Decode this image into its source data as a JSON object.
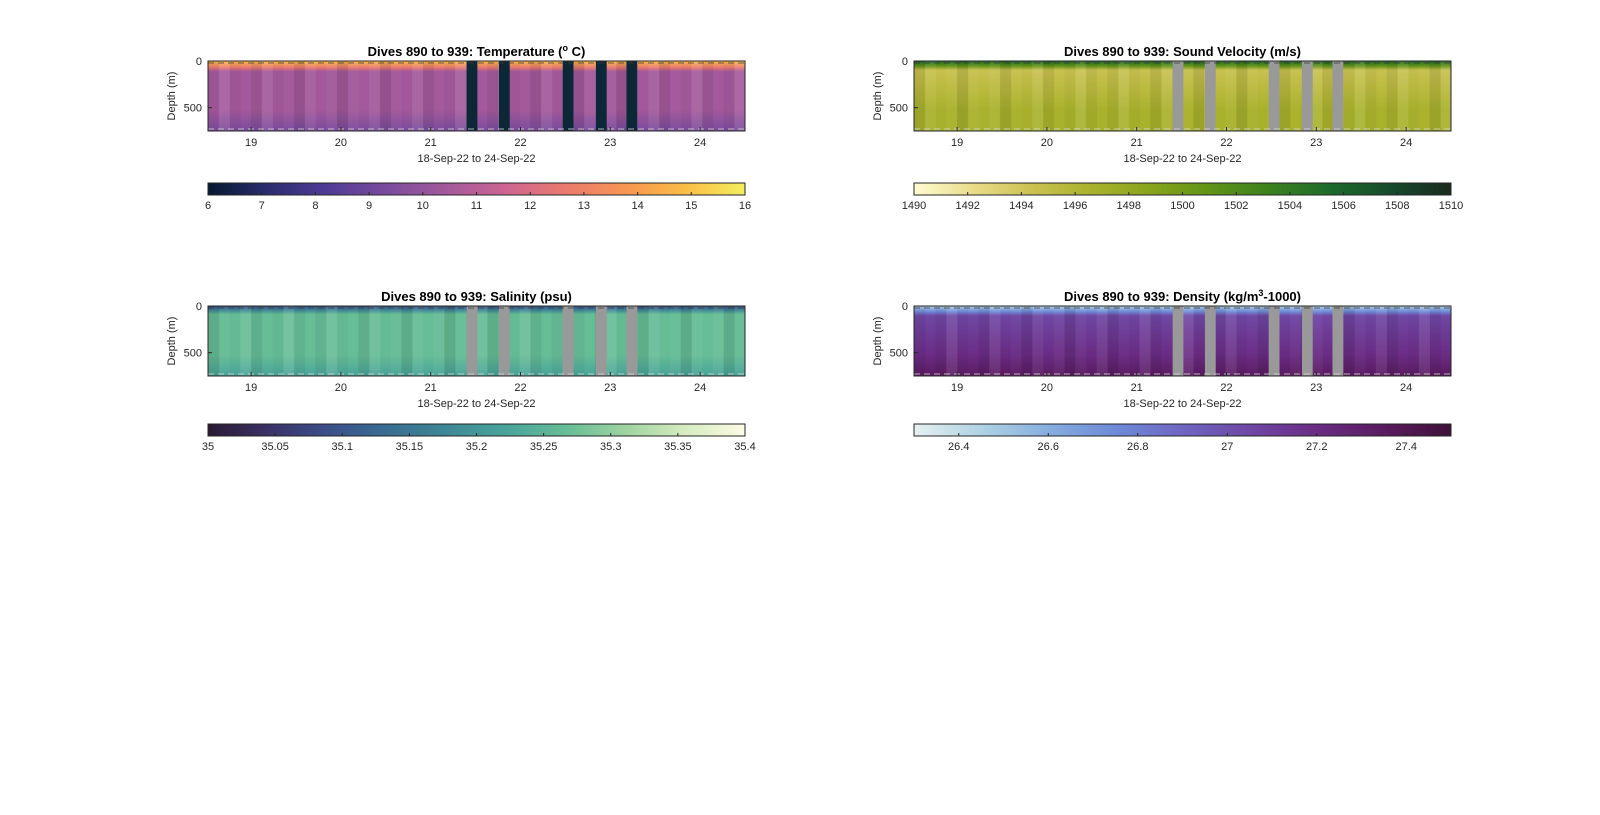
{
  "figure": {
    "background": "#ffffff"
  },
  "chart_data": [
    {
      "type": "heatmap",
      "title_prefix": "Dives 890 to 939: ",
      "title_main": "Temperature (",
      "title_sup": "o",
      "title_end": " C)",
      "xlabel": "18-Sep-22 to 24-Sep-22",
      "ylabel": "Depth (m)",
      "x_ticks": [
        "19",
        "20",
        "21",
        "22",
        "23",
        "24"
      ],
      "x_tick_values": [
        19,
        20,
        21,
        22,
        23,
        24
      ],
      "xlim": [
        18.52,
        24.5
      ],
      "y_ticks": [
        "0",
        "500"
      ],
      "y_tick_values": [
        0,
        500
      ],
      "ylim": [
        0,
        750
      ],
      "gaps": [
        [
          21.4,
          21.52
        ],
        [
          21.76,
          21.88
        ],
        [
          22.47,
          22.59
        ],
        [
          22.84,
          22.96
        ],
        [
          23.18,
          23.3
        ]
      ],
      "gap_color": "#0c2837",
      "colorbar": {
        "ticks": [
          "6",
          "7",
          "8",
          "9",
          "10",
          "11",
          "12",
          "13",
          "14",
          "15",
          "16"
        ],
        "tick_values": [
          6,
          7,
          8,
          9,
          10,
          11,
          12,
          13,
          14,
          15,
          16
        ],
        "range": [
          6,
          16
        ],
        "colors": [
          "#05192e",
          "#2b2d6e",
          "#4f3b97",
          "#7a4c9d",
          "#a3599b",
          "#cd6591",
          "#ea7a6e",
          "#f79652",
          "#fbbd46",
          "#f3ee5e"
        ]
      }
    },
    {
      "type": "heatmap",
      "title_prefix": "Dives 890 to 939: ",
      "title_main": "Sound Velocity (m/s)",
      "title_sup": "",
      "title_end": "",
      "xlabel": "18-Sep-22 to 24-Sep-22",
      "ylabel": "Depth (m)",
      "x_ticks": [
        "19",
        "20",
        "21",
        "22",
        "23",
        "24"
      ],
      "x_tick_values": [
        19,
        20,
        21,
        22,
        23,
        24
      ],
      "xlim": [
        18.52,
        24.5
      ],
      "y_ticks": [
        "0",
        "500"
      ],
      "y_tick_values": [
        0,
        500
      ],
      "ylim": [
        0,
        750
      ],
      "gaps": [
        [
          21.4,
          21.52
        ],
        [
          21.76,
          21.88
        ],
        [
          22.47,
          22.59
        ],
        [
          22.84,
          22.96
        ],
        [
          23.18,
          23.3
        ]
      ],
      "gap_color": "#999999",
      "colorbar": {
        "ticks": [
          "1490",
          "1492",
          "1494",
          "1496",
          "1498",
          "1500",
          "1502",
          "1504",
          "1506",
          "1508",
          "1510"
        ],
        "tick_values": [
          1490,
          1492,
          1494,
          1496,
          1498,
          1500,
          1502,
          1504,
          1506,
          1508,
          1510
        ],
        "range": [
          1490,
          1510
        ],
        "colors": [
          "#fefbd1",
          "#e8dc8a",
          "#c9c150",
          "#a9b22c",
          "#86a31a",
          "#5f9318",
          "#3a801f",
          "#1d6a2c",
          "#164b2c",
          "#1a2a1e"
        ]
      }
    },
    {
      "type": "heatmap",
      "title_prefix": "Dives 890 to 939: ",
      "title_main": "Salinity (psu)",
      "title_sup": "",
      "title_end": "",
      "xlabel": "18-Sep-22 to 24-Sep-22",
      "ylabel": "Depth (m)",
      "x_ticks": [
        "19",
        "20",
        "21",
        "22",
        "23",
        "24"
      ],
      "x_tick_values": [
        19,
        20,
        21,
        22,
        23,
        24
      ],
      "xlim": [
        18.52,
        24.5
      ],
      "y_ticks": [
        "0",
        "500"
      ],
      "y_tick_values": [
        0,
        500
      ],
      "ylim": [
        0,
        750
      ],
      "gaps": [
        [
          21.4,
          21.52
        ],
        [
          21.76,
          21.88
        ],
        [
          22.47,
          22.59
        ],
        [
          22.84,
          22.96
        ],
        [
          23.18,
          23.3
        ]
      ],
      "gap_color": "#999999",
      "colorbar": {
        "ticks": [
          "35",
          "35.05",
          "35.1",
          "35.15",
          "35.2",
          "35.25",
          "35.3",
          "35.35",
          "35.4"
        ],
        "tick_values": [
          35,
          35.05,
          35.1,
          35.15,
          35.2,
          35.25,
          35.3,
          35.35,
          35.4
        ],
        "range": [
          35,
          35.4
        ],
        "colors": [
          "#291a33",
          "#3b3166",
          "#3b4f8a",
          "#3a6d92",
          "#3f8896",
          "#49a49a",
          "#66bd96",
          "#9fd3a1",
          "#d6ecc0",
          "#fdfbe4"
        ]
      }
    },
    {
      "type": "heatmap",
      "title_prefix": "Dives 890 to 939: ",
      "title_main": "Density (kg/m",
      "title_sup": "3",
      "title_end": "-1000)",
      "xlabel": "18-Sep-22 to 24-Sep-22",
      "ylabel": "Depth (m)",
      "x_ticks": [
        "19",
        "20",
        "21",
        "22",
        "23",
        "24"
      ],
      "x_tick_values": [
        19,
        20,
        21,
        22,
        23,
        24
      ],
      "xlim": [
        18.52,
        24.5
      ],
      "y_ticks": [
        "0",
        "500"
      ],
      "y_tick_values": [
        0,
        500
      ],
      "ylim": [
        0,
        750
      ],
      "gaps": [
        [
          21.4,
          21.52
        ],
        [
          21.76,
          21.88
        ],
        [
          22.47,
          22.59
        ],
        [
          22.84,
          22.96
        ],
        [
          23.18,
          23.3
        ]
      ],
      "gap_color": "#999999",
      "colorbar": {
        "ticks": [
          "26.4",
          "26.6",
          "26.8",
          "27",
          "27.2",
          "27.4"
        ],
        "tick_values": [
          26.4,
          26.6,
          26.8,
          27,
          27.2,
          27.4
        ],
        "range": [
          26.3,
          27.5
        ],
        "colors": [
          "#e6f0f0",
          "#b0d2e4",
          "#86aedf",
          "#6e8ad8",
          "#6e66c2",
          "#6f47a4",
          "#6a2c84",
          "#5a1b60",
          "#3f1138"
        ]
      }
    }
  ]
}
